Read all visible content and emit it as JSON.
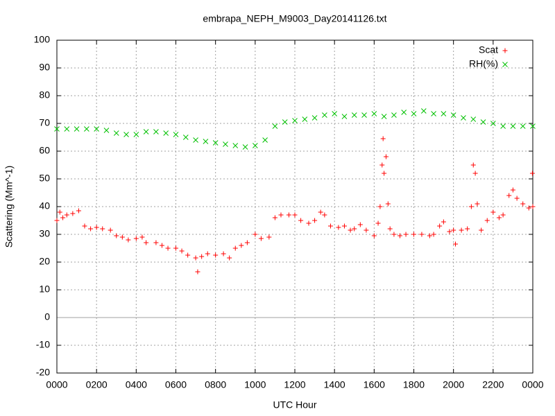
{
  "chart_data": {
    "type": "scatter",
    "title": "embrapa_NEPH_M9003_Day20141126.txt",
    "x_label": "UTC Hour",
    "y_label": "Scattering (Mm^-1)",
    "xlim": [
      0,
      24
    ],
    "xticks": [
      {
        "value": 0,
        "label": "0000"
      },
      {
        "value": 2,
        "label": "0200"
      },
      {
        "value": 4,
        "label": "0400"
      },
      {
        "value": 6,
        "label": "0600"
      },
      {
        "value": 8,
        "label": "0800"
      },
      {
        "value": 10,
        "label": "1000"
      },
      {
        "value": 12,
        "label": "1200"
      },
      {
        "value": 14,
        "label": "1400"
      },
      {
        "value": 16,
        "label": "1600"
      },
      {
        "value": 18,
        "label": "1800"
      },
      {
        "value": 20,
        "label": "2000"
      },
      {
        "value": 22,
        "label": "2200"
      },
      {
        "value": 24,
        "label": "0000"
      }
    ],
    "ylim": [
      -20,
      100
    ],
    "yticks": [
      -20,
      -10,
      0,
      10,
      20,
      30,
      40,
      50,
      60,
      70,
      80,
      90,
      100
    ],
    "grid": true,
    "legend": "top-right",
    "series": [
      {
        "name": "Scat",
        "color": "#ff0000",
        "marker": "+",
        "x": [
          0,
          0.15,
          0.3,
          0.5,
          0.8,
          1.1,
          1.4,
          1.7,
          2,
          2.3,
          2.7,
          3,
          3.3,
          3.6,
          4,
          4.3,
          4.5,
          5,
          5.3,
          5.6,
          6,
          6.3,
          6.6,
          7,
          7.1,
          7.3,
          7.6,
          8,
          8.4,
          8.7,
          9,
          9.3,
          9.6,
          10,
          10.3,
          10.7,
          11,
          11.3,
          11.7,
          12,
          12.3,
          12.7,
          13,
          13.3,
          13.5,
          13.8,
          14.2,
          14.5,
          14.8,
          15,
          15.3,
          15.6,
          16,
          16.2,
          16.3,
          16.4,
          16.45,
          16.5,
          16.6,
          16.7,
          16.8,
          17,
          17.3,
          17.6,
          18,
          18.4,
          18.8,
          19,
          19.3,
          19.5,
          19.8,
          20,
          20.1,
          20.4,
          20.7,
          20.9,
          21,
          21.1,
          21.2,
          21.4,
          21.7,
          22,
          22.3,
          22.5,
          22.8,
          23,
          23.2,
          23.5,
          23.8,
          23.98,
          24
        ],
        "values": [
          35,
          38,
          36,
          37,
          37.5,
          38.5,
          33,
          32,
          32.5,
          32,
          31.5,
          29.5,
          29,
          28,
          28.5,
          29,
          27,
          27,
          26,
          25,
          25,
          24,
          22.5,
          21.5,
          16.5,
          22,
          23,
          22.5,
          23,
          21.5,
          25,
          26,
          27,
          30,
          28.5,
          29,
          36,
          37,
          37,
          37,
          35,
          34,
          35,
          38,
          37,
          33,
          32.5,
          33,
          31.5,
          32,
          33.5,
          31.5,
          29.5,
          34,
          40,
          55,
          64.5,
          52,
          58,
          41,
          32,
          30,
          29.5,
          30,
          30,
          30,
          29.5,
          30,
          33,
          34.5,
          31,
          31.5,
          26.5,
          31.5,
          32,
          40,
          55,
          52,
          41,
          31.5,
          35,
          38,
          36,
          37,
          44,
          46,
          43,
          41,
          39.5,
          52,
          40
        ]
      },
      {
        "name": "RH(%)",
        "color": "#00c000",
        "marker": "x",
        "x": [
          0,
          0.5,
          1,
          1.5,
          2,
          2.5,
          3,
          3.5,
          4,
          4.5,
          5,
          5.5,
          6,
          6.5,
          7,
          7.5,
          8,
          8.5,
          9,
          9.5,
          10,
          10.5,
          11,
          11.5,
          12,
          12.5,
          13,
          13.5,
          14,
          14.5,
          15,
          15.5,
          16,
          16.5,
          17,
          17.5,
          18,
          18.5,
          19,
          19.5,
          20,
          20.5,
          21,
          21.5,
          22,
          22.5,
          23,
          23.5,
          24
        ],
        "values": [
          68,
          68,
          68,
          68,
          68,
          67.5,
          66.5,
          66,
          66,
          67,
          67,
          66.5,
          66,
          65,
          64,
          63.5,
          63,
          62.5,
          62,
          61.5,
          62,
          64,
          69,
          70.5,
          71,
          71.5,
          72,
          73,
          73.5,
          72.5,
          73,
          73,
          73.5,
          72.5,
          73,
          74,
          73.5,
          74.5,
          73.5,
          73.5,
          73,
          72,
          71.5,
          70.5,
          70,
          69,
          69,
          69,
          69
        ]
      }
    ]
  }
}
